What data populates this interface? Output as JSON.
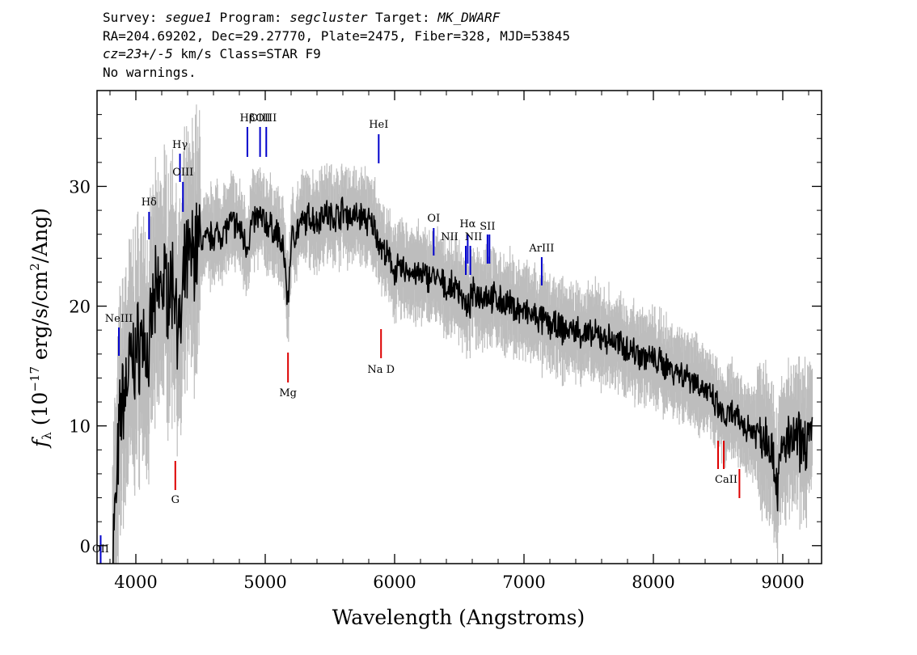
{
  "header": {
    "line1": {
      "survey_label": "Survey: ",
      "survey": "segue1",
      "program_label": " Program: ",
      "program": "segcluster",
      "target_label": " Target: ",
      "target": "MK_DWARF"
    },
    "line2": "RA=204.69202, Dec=29.27770, Plate=2475, Fiber=328, MJD=53845",
    "line3": {
      "cz": "cz=23+/-5",
      "rest": " km/s Class=STAR F9"
    },
    "line4": "No warnings."
  },
  "chart_data": {
    "type": "line",
    "xlabel": "Wavelength (Angstroms)",
    "ylabel": "f_λ (10^-17 erg/s/cm^2/Ang)",
    "ylabel_parts": {
      "f": "f",
      "lambda": "λ",
      "pre": " (10",
      "exp1": "−17",
      "mid": " erg/s/cm",
      "exp2": "2",
      "post": "/Ang)"
    },
    "xlim": [
      3700,
      9300
    ],
    "ylim": [
      -1.5,
      38.0
    ],
    "xticks": [
      4000,
      5000,
      6000,
      7000,
      8000,
      9000
    ],
    "xtick_labels": [
      "4000",
      "5000",
      "6000",
      "7000",
      "8000",
      "9000"
    ],
    "yticks": [
      0,
      10,
      20,
      30
    ],
    "ytick_labels": [
      "0",
      "10",
      "20",
      "30"
    ],
    "colors": {
      "flux": "#000000",
      "error_band": "#bdbdbd",
      "emission": "#0000cc",
      "absorption": "#dd0000"
    },
    "series": [
      {
        "role": "flux",
        "x": [
          3820,
          3850,
          3870,
          3890,
          3920,
          3950,
          3980,
          4000,
          4030,
          4060,
          4101,
          4130,
          4160,
          4200,
          4250,
          4300,
          4340,
          4380,
          4420,
          4460,
          4500,
          4550,
          4600,
          4650,
          4700,
          4750,
          4800,
          4861,
          4900,
          4950,
          5000,
          5050,
          5100,
          5150,
          5175,
          5200,
          5250,
          5300,
          5350,
          5400,
          5450,
          5500,
          5550,
          5600,
          5650,
          5700,
          5750,
          5800,
          5850,
          5890,
          5950,
          6000,
          6100,
          6200,
          6300,
          6400,
          6500,
          6563,
          6600,
          6700,
          6800,
          6900,
          7000,
          7100,
          7200,
          7300,
          7400,
          7500,
          7600,
          7700,
          7800,
          7900,
          8000,
          8100,
          8200,
          8300,
          8400,
          8500,
          8550,
          8600,
          8700,
          8800,
          8900,
          8960,
          9000,
          9050,
          9100,
          9150,
          9200,
          9230
        ],
        "y": [
          0.0,
          4.0,
          9.0,
          12.0,
          13.0,
          15.0,
          15.5,
          16.0,
          17.0,
          17.5,
          15.0,
          20.0,
          20.5,
          22.0,
          21.5,
          22.0,
          17.0,
          23.0,
          24.0,
          25.0,
          25.5,
          25.5,
          26.0,
          26.0,
          26.5,
          27.0,
          26.5,
          25.0,
          27.0,
          27.5,
          27.0,
          26.5,
          26.0,
          24.0,
          20.0,
          25.5,
          26.5,
          27.0,
          27.5,
          27.0,
          28.0,
          27.5,
          27.5,
          28.0,
          27.5,
          27.5,
          27.5,
          27.0,
          26.5,
          25.0,
          24.0,
          23.0,
          23.0,
          22.5,
          22.5,
          21.5,
          21.5,
          19.5,
          21.0,
          21.0,
          20.5,
          20.0,
          19.5,
          19.0,
          18.5,
          18.0,
          18.0,
          17.5,
          17.5,
          17.0,
          16.5,
          16.0,
          15.5,
          15.0,
          14.5,
          14.0,
          13.0,
          11.5,
          10.5,
          11.0,
          10.0,
          9.5,
          9.0,
          5.0,
          8.5,
          8.5,
          9.0,
          8.5,
          9.0,
          9.5
        ]
      }
    ],
    "lines": [
      {
        "label": "NeIII",
        "x": 3869,
        "kind": "emission"
      },
      {
        "label": "Hδ",
        "x": 4102,
        "kind": "emission"
      },
      {
        "label": "Hγ",
        "x": 4341,
        "kind": "emission"
      },
      {
        "label": "OIII",
        "x": 4364,
        "kind": "emission"
      },
      {
        "label": "Hβ",
        "x": 4862,
        "kind": "emission"
      },
      {
        "label": "OIII",
        "x": 4960,
        "kind": "emission"
      },
      {
        "label": "OIII",
        "x": 5008,
        "kind": "emission"
      },
      {
        "label": "HeI",
        "x": 5877,
        "kind": "emission"
      },
      {
        "label": "OI",
        "x": 6302,
        "kind": "emission"
      },
      {
        "label": "NII",
        "x": 6550,
        "kind": "emission"
      },
      {
        "label": "Hα",
        "x": 6565,
        "kind": "emission"
      },
      {
        "label": "NII",
        "x": 6585,
        "kind": "emission"
      },
      {
        "label": "SII",
        "x": 6718,
        "kind": "emission"
      },
      {
        "label": "SII",
        "x": 6733,
        "kind": "emission"
      },
      {
        "label": "ArIII",
        "x": 7137,
        "kind": "emission"
      },
      {
        "label": "OII",
        "x": 3728,
        "kind": "emission"
      },
      {
        "label": "G",
        "x": 4305,
        "kind": "absorption"
      },
      {
        "label": "Mg",
        "x": 5176,
        "kind": "absorption"
      },
      {
        "label": "Na D",
        "x": 5895,
        "kind": "absorption"
      },
      {
        "label": "CaII",
        "x": 8500,
        "kind": "absorption"
      },
      {
        "label": "CaII",
        "x": 8544,
        "kind": "absorption"
      },
      {
        "label": "CaII",
        "x": 8665,
        "kind": "absorption"
      }
    ]
  }
}
